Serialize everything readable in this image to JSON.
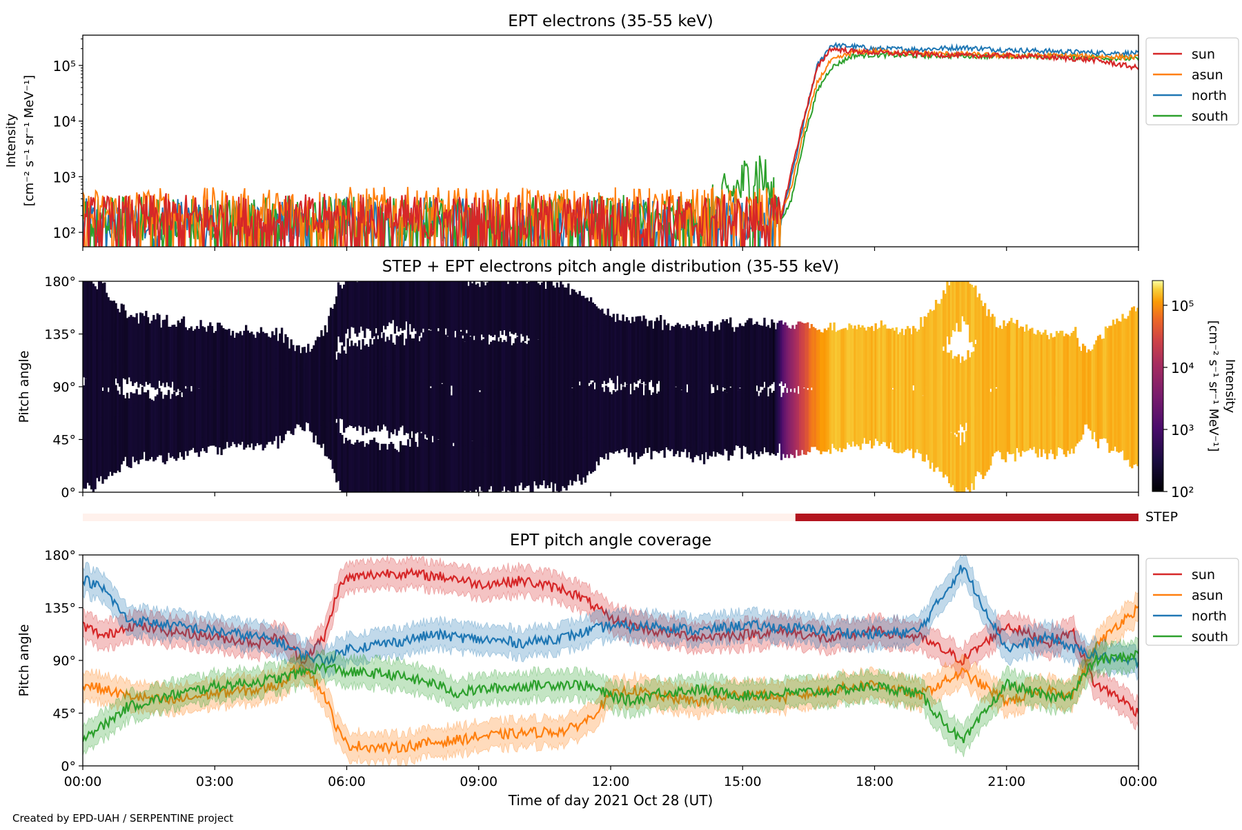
{
  "credit": "Created by EPD-UAH / SERPENTINE project",
  "colors": {
    "sun": "#d62728",
    "asun": "#ff7f0e",
    "north": "#1f77b4",
    "south": "#2ca02c",
    "step_bar_off": "#fff1ec",
    "step_bar_on": "#b3141e"
  },
  "chart_data": [
    {
      "type": "line",
      "title": "EPT electrons (35-55 keV)",
      "xlabel": "",
      "ylabel": "Intensity",
      "ylabel_units": "[cm⁻² s⁻¹ sr⁻¹ MeV⁻¹]",
      "yscale": "log",
      "ylim": [
        55,
        350000
      ],
      "yticks": [
        100,
        1000,
        10000,
        100000
      ],
      "ytick_labels": [
        "10²",
        "10³",
        "10⁴",
        "10⁵"
      ],
      "x_unit": "hours since 00:00 UT",
      "xlim": [
        0,
        24
      ],
      "legend": {
        "position": "outside-right-top",
        "entries": [
          "sun",
          "asun",
          "north",
          "south"
        ]
      },
      "series": [
        {
          "name": "sun",
          "x": [
            0,
            2,
            4,
            6,
            8,
            10,
            12,
            14,
            15.4,
            15.85,
            16.1,
            16.4,
            16.7,
            17.0,
            17.5,
            18,
            19,
            20,
            21,
            22,
            23,
            24
          ],
          "y": [
            150,
            160,
            150,
            160,
            155,
            150,
            155,
            150,
            160,
            150,
            1200,
            12000,
            90000,
            200000,
            180000,
            170000,
            160000,
            150000,
            150000,
            140000,
            125000,
            90000
          ]
        },
        {
          "name": "asun",
          "x": [
            0,
            2,
            4,
            6,
            8,
            10,
            12,
            14,
            15.4,
            15.85,
            16.1,
            16.4,
            16.7,
            17.0,
            17.5,
            18,
            19,
            20,
            21,
            22,
            23,
            24
          ],
          "y": [
            200,
            210,
            200,
            215,
            205,
            200,
            210,
            200,
            210,
            200,
            600,
            7000,
            50000,
            120000,
            170000,
            180000,
            165000,
            160000,
            150000,
            150000,
            145000,
            140000
          ]
        },
        {
          "name": "north",
          "x": [
            0,
            2,
            4,
            6,
            8,
            10,
            12,
            14,
            15.4,
            15.85,
            16.1,
            16.4,
            16.7,
            17.0,
            17.5,
            18,
            19,
            20,
            21,
            22,
            23,
            24
          ],
          "y": [
            130,
            140,
            130,
            140,
            135,
            130,
            135,
            130,
            140,
            130,
            900,
            10000,
            100000,
            230000,
            220000,
            200000,
            195000,
            210000,
            190000,
            180000,
            170000,
            165000
          ]
        },
        {
          "name": "south",
          "x": [
            0,
            2,
            4,
            6,
            8,
            10,
            12,
            14,
            15.4,
            15.85,
            16.1,
            16.4,
            16.7,
            17.0,
            17.5,
            18,
            19,
            20,
            21,
            22,
            23,
            24
          ],
          "y": [
            140,
            150,
            145,
            150,
            145,
            140,
            150,
            140,
            1400,
            160,
            350,
            5000,
            35000,
            90000,
            150000,
            155000,
            150000,
            150000,
            145000,
            145000,
            140000,
            130000
          ]
        }
      ]
    },
    {
      "type": "heatmap",
      "title": "STEP + EPT electrons pitch angle distribution (35-55 keV)",
      "ylabel": "Pitch angle",
      "ylim": [
        0,
        180
      ],
      "yticks": [
        0,
        45,
        90,
        135,
        180
      ],
      "ytick_labels": [
        "0°",
        "45°",
        "90°",
        "135°",
        "180°"
      ],
      "xlim": [
        0,
        24
      ],
      "colorbar": {
        "label": "Intensity",
        "units": "[cm⁻² s⁻¹ sr⁻¹ MeV⁻¹]",
        "scale": "log",
        "range": [
          100,
          250000
        ],
        "ticks": [
          100,
          1000,
          10000,
          100000
        ],
        "tick_labels": [
          "10²",
          "10³",
          "10⁴",
          "10⁵"
        ],
        "colormap": "inferno"
      },
      "coverage_bands_note": "Filled where sensors cover the pitch angle",
      "intensity_profile": {
        "x": [
          0,
          15.7,
          16.0,
          16.3,
          16.6,
          17.0,
          24
        ],
        "y": [
          150,
          160,
          3000,
          20000,
          80000,
          150000,
          140000
        ]
      }
    },
    {
      "type": "bar",
      "label": "STEP",
      "segments": [
        {
          "start": 0,
          "end": 16.2,
          "state": "off"
        },
        {
          "start": 16.2,
          "end": 24,
          "state": "on"
        }
      ]
    },
    {
      "type": "line",
      "title": "EPT pitch angle coverage",
      "xlabel": "Time of day 2021 Oct 28 (UT)",
      "ylabel": "Pitch angle",
      "ylim": [
        0,
        180
      ],
      "yticks": [
        0,
        45,
        90,
        135,
        180
      ],
      "ytick_labels": [
        "0°",
        "45°",
        "90°",
        "135°",
        "180°"
      ],
      "xlim": [
        0,
        24
      ],
      "xticks": [
        0,
        3,
        6,
        9,
        12,
        15,
        18,
        21,
        24
      ],
      "xtick_labels": [
        "00:00",
        "03:00",
        "06:00",
        "09:00",
        "12:00",
        "15:00",
        "18:00",
        "21:00",
        "00:00"
      ],
      "legend": {
        "position": "outside-right-top",
        "entries": [
          "sun",
          "asun",
          "north",
          "south"
        ]
      },
      "band_halfwidth_deg": 12,
      "series": [
        {
          "name": "sun",
          "x": [
            0,
            0.5,
            1,
            2,
            3,
            4,
            4.5,
            5,
            5.5,
            5.8,
            6,
            7,
            8,
            8.5,
            9,
            10,
            11,
            11.5,
            12,
            12.5,
            13,
            14,
            15,
            16,
            17,
            18,
            19,
            20,
            21,
            22,
            22.5,
            23,
            23.5,
            24
          ],
          "y": [
            120,
            110,
            120,
            115,
            110,
            105,
            110,
            90,
            110,
            150,
            160,
            165,
            162,
            160,
            155,
            158,
            150,
            140,
            125,
            120,
            115,
            110,
            112,
            115,
            108,
            115,
            110,
            90,
            120,
            105,
            115,
            70,
            60,
            45
          ]
        },
        {
          "name": "asun",
          "x": [
            0,
            0.5,
            1,
            2,
            3,
            4,
            4.5,
            5,
            5.5,
            5.8,
            6,
            7,
            8,
            8.5,
            9,
            10,
            11,
            11.5,
            12,
            12.5,
            13,
            14,
            15,
            16,
            17,
            18,
            19,
            20,
            21,
            22,
            22.5,
            23,
            23.5,
            24
          ],
          "y": [
            70,
            65,
            60,
            55,
            62,
            65,
            70,
            88,
            60,
            30,
            18,
            15,
            20,
            22,
            25,
            28,
            30,
            40,
            60,
            65,
            60,
            55,
            62,
            58,
            65,
            70,
            60,
            80,
            55,
            65,
            60,
            100,
            120,
            135
          ]
        },
        {
          "name": "north",
          "x": [
            0,
            0.5,
            1,
            2,
            3,
            4,
            4.5,
            5,
            5.5,
            5.8,
            6,
            7,
            8,
            8.5,
            9,
            10,
            11,
            11.5,
            12,
            12.5,
            13,
            14,
            15,
            16,
            17,
            18,
            19,
            20,
            21,
            22,
            22.5,
            23,
            23.5,
            24
          ],
          "y": [
            160,
            150,
            125,
            120,
            115,
            110,
            105,
            95,
            90,
            95,
            100,
            105,
            112,
            110,
            108,
            105,
            110,
            115,
            120,
            118,
            120,
            115,
            120,
            118,
            115,
            112,
            115,
            170,
            100,
            110,
            100,
            95,
            90,
            88
          ]
        },
        {
          "name": "south",
          "x": [
            0,
            0.5,
            1,
            2,
            3,
            4,
            4.5,
            5,
            5.5,
            5.8,
            6,
            7,
            8,
            8.5,
            9,
            10,
            11,
            11.5,
            12,
            12.5,
            13,
            14,
            15,
            16,
            17,
            18,
            19,
            20,
            21,
            22,
            22.5,
            23,
            23.5,
            24
          ],
          "y": [
            25,
            35,
            50,
            60,
            68,
            72,
            75,
            80,
            85,
            82,
            80,
            78,
            70,
            62,
            65,
            68,
            70,
            68,
            60,
            55,
            62,
            65,
            60,
            62,
            64,
            68,
            62,
            20,
            70,
            58,
            62,
            90,
            92,
            95
          ]
        }
      ]
    }
  ]
}
